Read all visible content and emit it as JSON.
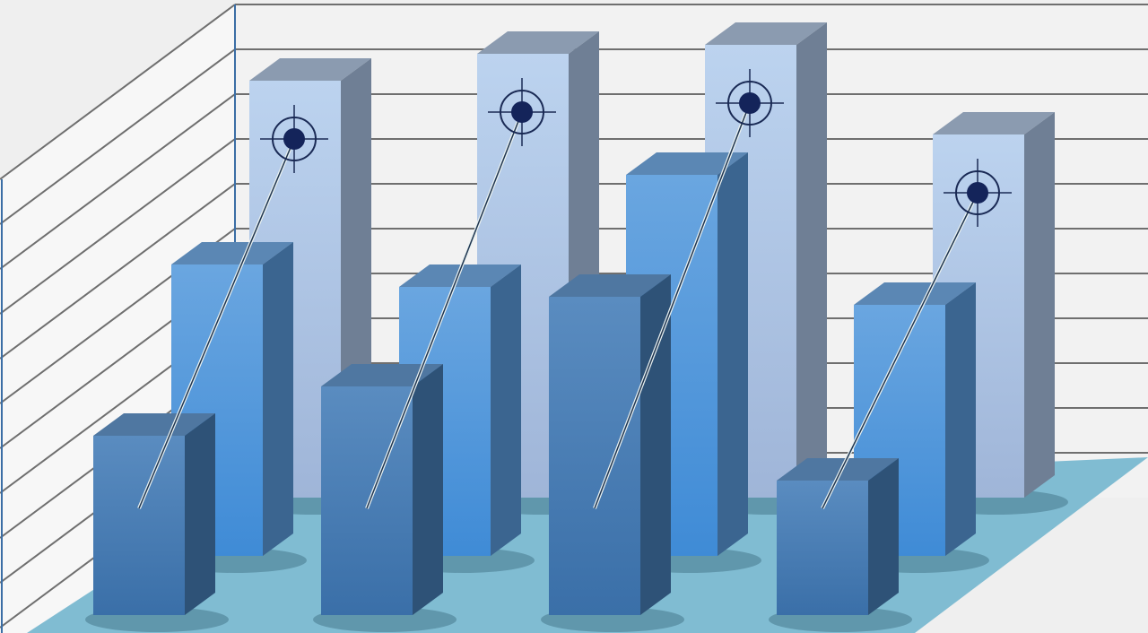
{
  "chart_data": {
    "type": "bar",
    "style": "3d-grouped",
    "title": "",
    "xlabel": "",
    "ylabel": "",
    "grid": true,
    "ylim": [
      0,
      11
    ],
    "categories": [
      "",
      "",
      "",
      ""
    ],
    "series": [
      {
        "values": [
          9.3,
          9.9,
          10.1,
          8.1
        ],
        "color": "#b3cdec",
        "marker": "target"
      },
      {
        "values": [
          6.5,
          6.0,
          8.5,
          5.6
        ],
        "color": "#4f95d9"
      },
      {
        "values": [
          4.0,
          5.1,
          7.1,
          3.0
        ],
        "color": "#3f74a8"
      }
    ],
    "floor_color": "#80bcd2",
    "background_color": "#efefef"
  }
}
